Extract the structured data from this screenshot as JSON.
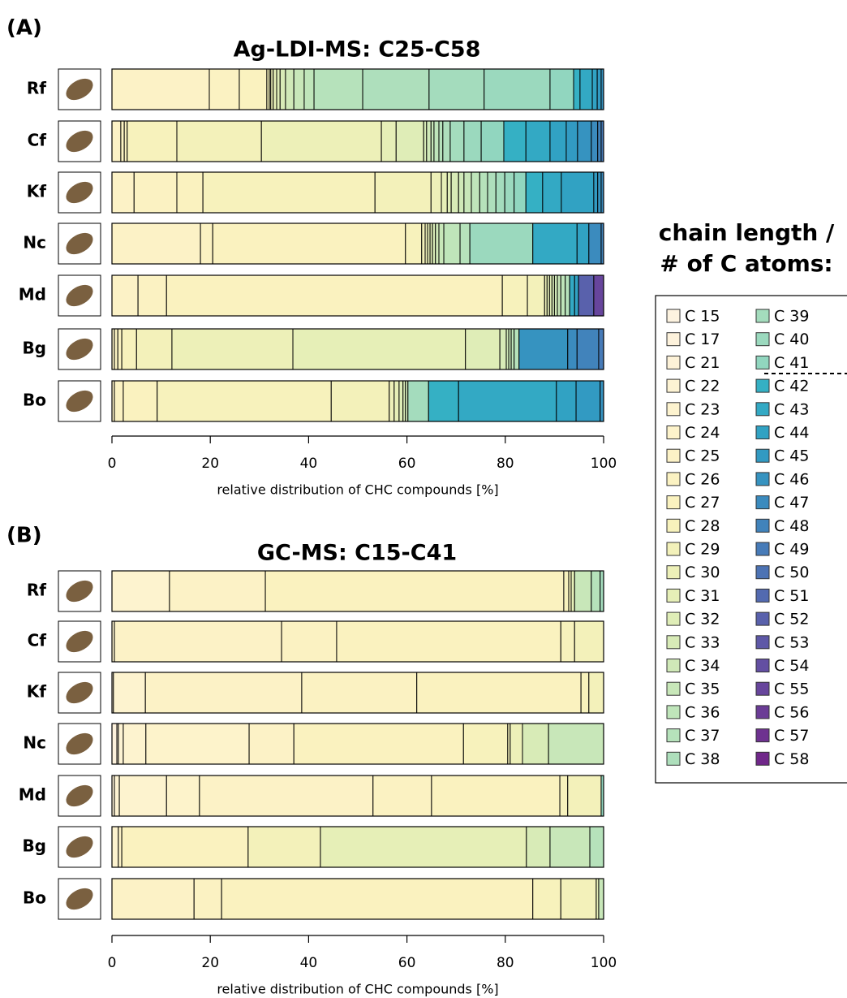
{
  "chart_data": [
    {
      "type": "stacked_barh",
      "panel": "(A)",
      "title": "Ag-LDI-MS: C25-C58",
      "xlabel": "relative distribution of CHC compounds [%]",
      "xlim": [
        0,
        100
      ],
      "xticks": [
        0,
        20,
        40,
        60,
        80,
        100
      ],
      "categories": [
        "Rf",
        "Cf",
        "Kf",
        "Nc",
        "Md",
        "Bg",
        "Bo"
      ],
      "series": [
        "C 25",
        "C 26",
        "C 27",
        "C 28",
        "C 29",
        "C 30",
        "C 31",
        "C 32",
        "C 33",
        "C 34",
        "C 35",
        "C 36",
        "C 37",
        "C 38",
        "C 39",
        "C 40",
        "C 41",
        "C 42",
        "C 43",
        "C 44",
        "C 45",
        "C 46",
        "C 47",
        "C 48",
        "C 49",
        "C 50",
        "C 51",
        "C 52",
        "C 53",
        "C 54",
        "C 55",
        "C 56",
        "C 57",
        "C 58"
      ],
      "values": [
        [
          19.8,
          6.1,
          5.6,
          0.5,
          0.3,
          0.5,
          0.7,
          0.7,
          1.1,
          1.7,
          2.1,
          2.0,
          9.9,
          13.5,
          11.2,
          13.4,
          4.8,
          1.3,
          2.5,
          1.0,
          0.8,
          0.5,
          0,
          0,
          0,
          0,
          0,
          0,
          0,
          0,
          0,
          0,
          0,
          0
        ],
        [
          1.8,
          0.7,
          0.6,
          10.1,
          17.2,
          24.4,
          3.0,
          5.6,
          0.6,
          0.9,
          0.6,
          1.0,
          0.8,
          1.5,
          2.8,
          3.5,
          4.6,
          4.5,
          4.9,
          3.3,
          2.3,
          2.8,
          1.3,
          0.7,
          0.5,
          0,
          0,
          0,
          0,
          0,
          0,
          0,
          0,
          0
        ],
        [
          4.5,
          8.7,
          5.3,
          35.0,
          11.4,
          2.1,
          1.2,
          0.8,
          1.5,
          1.1,
          1.5,
          1.7,
          1.6,
          1.7,
          1.8,
          1.9,
          2.4,
          3.4,
          3.8,
          6.6,
          0.8,
          0.7,
          0.5,
          0,
          0,
          0,
          0,
          0,
          0,
          0,
          0,
          0,
          0,
          0
        ],
        [
          18.0,
          2.5,
          39.2,
          3.3,
          0.7,
          0.5,
          0.5,
          0.5,
          0.6,
          0.7,
          1.0,
          3.3,
          2.0,
          0,
          0,
          12.8,
          0,
          0,
          9.0,
          2.4,
          0,
          0,
          2.5,
          0.5,
          0,
          0,
          0,
          0,
          0,
          0,
          0,
          0,
          0,
          0
        ],
        [
          5.3,
          5.8,
          68.3,
          5.1,
          3.5,
          0.5,
          0.5,
          0.5,
          0.5,
          0.6,
          0.7,
          0.9,
          0.9,
          0,
          0,
          0,
          0,
          0,
          1.0,
          0.8,
          0,
          0,
          0,
          0,
          0,
          0,
          0,
          3.1,
          0,
          0,
          2.0,
          0,
          0,
          0
        ],
        [
          0.5,
          0.7,
          0.8,
          3.0,
          7.2,
          24.6,
          35.1,
          7.0,
          1.3,
          0.5,
          0.5,
          0.6,
          1.0,
          0,
          0,
          0,
          0,
          0,
          0,
          0,
          0,
          9.9,
          1.9,
          4.4,
          1.0,
          0,
          0,
          0,
          0,
          0,
          0,
          0,
          0,
          0
        ],
        [
          0.5,
          1.8,
          6.9,
          35.4,
          11.8,
          1.0,
          1.0,
          0.8,
          0.5,
          0.5,
          0,
          0,
          0,
          0,
          4.2,
          0,
          0,
          6.1,
          19.9,
          4.0,
          4.9,
          0.7,
          0,
          0,
          0,
          0,
          0,
          0,
          0,
          0,
          0,
          0,
          0,
          0
        ]
      ]
    },
    {
      "type": "stacked_barh",
      "panel": "(B)",
      "title": "GC-MS: C15-C41",
      "xlabel": "relative distribution of CHC compounds [%]",
      "xlim": [
        0,
        100
      ],
      "xticks": [
        0,
        20,
        40,
        60,
        80,
        100
      ],
      "categories": [
        "Rf",
        "Cf",
        "Kf",
        "Nc",
        "Md",
        "Bg",
        "Bo"
      ],
      "series": [
        "C 15",
        "C 17",
        "C 21",
        "C 22",
        "C 23",
        "C 24",
        "C 25",
        "C 26",
        "C 27",
        "C 28",
        "C 29",
        "C 30",
        "C 31",
        "C 32",
        "C 33",
        "C 34",
        "C 35",
        "C 36",
        "C 37",
        "C 38",
        "C 39",
        "C 40",
        "C 41"
      ],
      "values": [
        [
          0,
          0,
          0,
          0,
          11.7,
          0,
          19.5,
          0,
          60.7,
          1.0,
          0.5,
          0,
          0.7,
          0,
          0,
          0,
          3.4,
          0,
          1.8,
          0,
          0.7,
          0,
          0
        ],
        [
          0,
          0,
          0,
          0,
          0.5,
          0,
          34.0,
          11.2,
          45.6,
          2.8,
          5.9,
          0,
          0,
          0,
          0,
          0,
          0,
          0,
          0,
          0,
          0,
          0,
          0
        ],
        [
          0,
          0,
          0.3,
          0,
          6.5,
          0,
          31.8,
          23.4,
          33.4,
          1.6,
          3.0,
          0,
          0,
          0,
          0,
          0,
          0,
          0,
          0,
          0,
          0,
          0,
          0
        ],
        [
          0,
          1.0,
          0.3,
          1.0,
          4.6,
          21.0,
          9.1,
          0,
          34.5,
          9.0,
          0.5,
          2.5,
          0,
          0,
          5.3,
          0,
          11.2,
          0,
          0,
          0,
          0,
          0,
          0
        ],
        [
          0,
          0,
          0.5,
          1.0,
          9.6,
          6.7,
          35.3,
          11.9,
          26.1,
          1.6,
          6.8,
          0,
          0,
          0,
          0,
          0,
          0,
          0,
          0,
          0,
          0,
          0,
          0.5
        ],
        [
          0,
          0,
          0,
          0,
          1.3,
          0,
          0.7,
          0,
          25.7,
          0,
          14.7,
          0,
          41.9,
          0,
          4.8,
          0,
          8.1,
          0,
          2.8,
          0,
          0,
          0,
          0
        ],
        [
          0,
          0,
          0,
          0,
          0,
          0,
          16.7,
          5.6,
          63.3,
          5.7,
          7.2,
          0,
          0.5,
          0,
          0,
          0,
          1.0,
          0,
          0,
          0,
          0,
          0,
          0
        ]
      ]
    }
  ],
  "legend": {
    "title": [
      "chain length /",
      "# of C atoms:"
    ],
    "series": [
      {
        "name": "C 15",
        "color": "#fdf3e0"
      },
      {
        "name": "C 17",
        "color": "#fdf2dc"
      },
      {
        "name": "C 21",
        "color": "#fdf2d8"
      },
      {
        "name": "C 22",
        "color": "#fdf3d3"
      },
      {
        "name": "C 23",
        "color": "#fdf3cf"
      },
      {
        "name": "C 24",
        "color": "#fdf3cb"
      },
      {
        "name": "C 25",
        "color": "#fcf2c6"
      },
      {
        "name": "C 26",
        "color": "#fbf2c2"
      },
      {
        "name": "C 27",
        "color": "#faf2bf"
      },
      {
        "name": "C 28",
        "color": "#f7f2bc"
      },
      {
        "name": "C 29",
        "color": "#f3f1ba"
      },
      {
        "name": "C 30",
        "color": "#edf0b8"
      },
      {
        "name": "C 31",
        "color": "#e6efb7"
      },
      {
        "name": "C 32",
        "color": "#dfedb7"
      },
      {
        "name": "C 33",
        "color": "#d8ebb7"
      },
      {
        "name": "C 34",
        "color": "#d0e9b8"
      },
      {
        "name": "C 35",
        "color": "#c8e7b9"
      },
      {
        "name": "C 36",
        "color": "#bfe5ba"
      },
      {
        "name": "C 37",
        "color": "#b6e2bb"
      },
      {
        "name": "C 38",
        "color": "#aedfbc"
      },
      {
        "name": "C 39",
        "color": "#a4dcbd"
      },
      {
        "name": "C 40",
        "color": "#9bd9be"
      },
      {
        "name": "C 41",
        "color": "#91d6bf"
      },
      {
        "name": "C 42",
        "color": "#35b0c4"
      },
      {
        "name": "C 43",
        "color": "#33a9c4"
      },
      {
        "name": "C 44",
        "color": "#31a2c3"
      },
      {
        "name": "C 45",
        "color": "#329ac2"
      },
      {
        "name": "C 46",
        "color": "#3693c0"
      },
      {
        "name": "C 47",
        "color": "#3b8bbe"
      },
      {
        "name": "C 48",
        "color": "#4183bb"
      },
      {
        "name": "C 49",
        "color": "#477bb8"
      },
      {
        "name": "C 50",
        "color": "#4d73b4"
      },
      {
        "name": "C 51",
        "color": "#536ab0"
      },
      {
        "name": "C 52",
        "color": "#5961ac"
      },
      {
        "name": "C 53",
        "color": "#5e58a7"
      },
      {
        "name": "C 54",
        "color": "#634fa2"
      },
      {
        "name": "C 55",
        "color": "#67459c"
      },
      {
        "name": "C 56",
        "color": "#6b3c96"
      },
      {
        "name": "C 57",
        "color": "#6e3290"
      },
      {
        "name": "C 58",
        "color": "#70278a"
      }
    ]
  }
}
